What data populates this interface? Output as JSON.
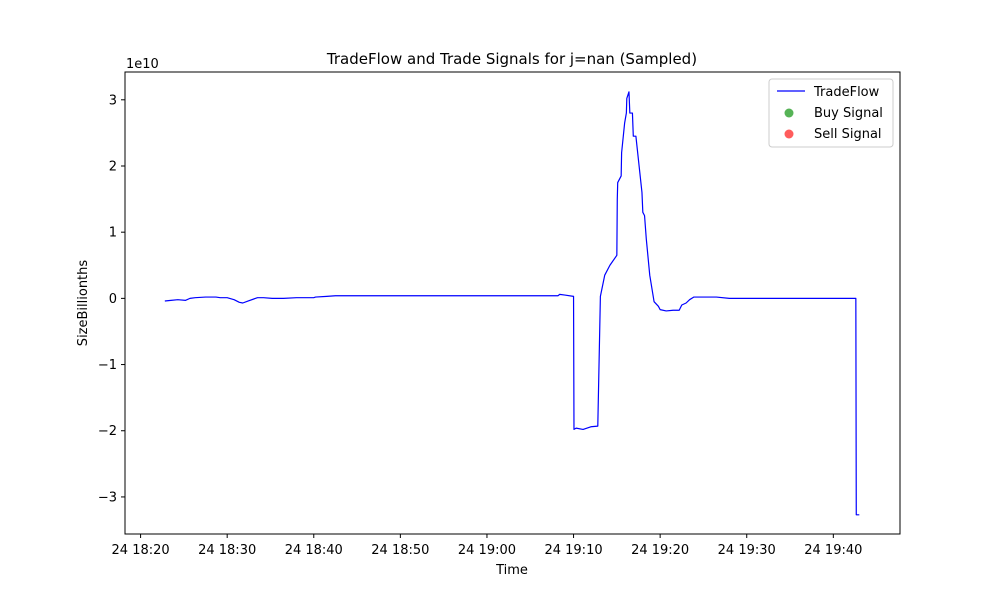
{
  "chart_data": {
    "type": "line",
    "title": "TradeFlow and Trade Signals for j=nan (Sampled)",
    "xlabel": "Time",
    "ylabel": "SizeBillionths",
    "y_offset_label": "1e10",
    "x_unit": "minutes since 24 18:20",
    "x_ticks": [
      {
        "value": 0,
        "label": "24 18:20"
      },
      {
        "value": 10,
        "label": "24 18:30"
      },
      {
        "value": 20,
        "label": "24 18:40"
      },
      {
        "value": 30,
        "label": "24 18:50"
      },
      {
        "value": 40,
        "label": "24 19:00"
      },
      {
        "value": 50,
        "label": "24 19:10"
      },
      {
        "value": 60,
        "label": "24 19:20"
      },
      {
        "value": 70,
        "label": "24 19:30"
      },
      {
        "value": 80,
        "label": "24 19:40"
      }
    ],
    "y_ticks": [
      {
        "value": -3,
        "label": "−3"
      },
      {
        "value": -2,
        "label": "−2"
      },
      {
        "value": -1,
        "label": "−1"
      },
      {
        "value": 0,
        "label": "0"
      },
      {
        "value": 1,
        "label": "1"
      },
      {
        "value": 2,
        "label": "2"
      },
      {
        "value": 3,
        "label": "3"
      }
    ],
    "xlim": [
      -1.8,
      87.7
    ],
    "ylim": [
      -3.56,
      3.42
    ],
    "legend": {
      "position": "top-right",
      "entries": [
        {
          "label": "TradeFlow",
          "kind": "line",
          "color": "#0000ff"
        },
        {
          "label": "Buy Signal",
          "kind": "marker",
          "color": "#2ca02c"
        },
        {
          "label": "Sell Signal",
          "kind": "marker",
          "color": "#ff3333"
        }
      ]
    },
    "series": [
      {
        "name": "TradeFlow",
        "color": "#0000ff",
        "points": [
          [
            2.8,
            -0.04
          ],
          [
            3.5,
            -0.03
          ],
          [
            4.3,
            -0.02
          ],
          [
            5.2,
            -0.03
          ],
          [
            5.7,
            0.0
          ],
          [
            6.3,
            0.01
          ],
          [
            7.5,
            0.02
          ],
          [
            8.7,
            0.02
          ],
          [
            9.2,
            0.01
          ],
          [
            10.0,
            0.01
          ],
          [
            10.8,
            -0.02
          ],
          [
            11.4,
            -0.06
          ],
          [
            11.8,
            -0.07
          ],
          [
            12.4,
            -0.04
          ],
          [
            13.5,
            0.01
          ],
          [
            14.2,
            0.01
          ],
          [
            15.2,
            0.0
          ],
          [
            16.5,
            0.0
          ],
          [
            18.0,
            0.01
          ],
          [
            19.3,
            0.01
          ],
          [
            20.0,
            0.01
          ],
          [
            20.2,
            0.02
          ],
          [
            21.5,
            0.03
          ],
          [
            22.5,
            0.04
          ],
          [
            23.3,
            0.04
          ],
          [
            30.0,
            0.04
          ],
          [
            40.0,
            0.04
          ],
          [
            48.2,
            0.04
          ],
          [
            48.4,
            0.06
          ],
          [
            49.0,
            0.05
          ],
          [
            50.0,
            0.03
          ],
          [
            50.05,
            -1.98
          ],
          [
            50.3,
            -1.96
          ],
          [
            51.1,
            -1.98
          ],
          [
            52.0,
            -1.94
          ],
          [
            52.8,
            -1.93
          ],
          [
            53.1,
            0.03
          ],
          [
            53.6,
            0.35
          ],
          [
            54.2,
            0.5
          ],
          [
            55.0,
            0.65
          ],
          [
            55.05,
            1.5
          ],
          [
            55.1,
            1.75
          ],
          [
            55.5,
            1.85
          ],
          [
            55.55,
            2.2
          ],
          [
            55.9,
            2.65
          ],
          [
            56.1,
            2.8
          ],
          [
            56.15,
            3.02
          ],
          [
            56.4,
            3.12
          ],
          [
            56.5,
            2.8
          ],
          [
            56.8,
            2.8
          ],
          [
            56.9,
            2.45
          ],
          [
            57.2,
            2.45
          ],
          [
            57.9,
            1.6
          ],
          [
            58.0,
            1.3
          ],
          [
            58.2,
            1.25
          ],
          [
            58.4,
            0.9
          ],
          [
            58.8,
            0.35
          ],
          [
            59.3,
            -0.05
          ],
          [
            59.8,
            -0.12
          ],
          [
            60.0,
            -0.17
          ],
          [
            60.7,
            -0.19
          ],
          [
            61.5,
            -0.18
          ],
          [
            62.2,
            -0.18
          ],
          [
            62.5,
            -0.1
          ],
          [
            63.0,
            -0.07
          ],
          [
            63.4,
            -0.02
          ],
          [
            63.9,
            0.02
          ],
          [
            65.0,
            0.02
          ],
          [
            66.5,
            0.02
          ],
          [
            68.0,
            0.0
          ],
          [
            70.0,
            0.0
          ],
          [
            80.0,
            0.0
          ],
          [
            82.6,
            0.0
          ],
          [
            82.65,
            -3.27
          ],
          [
            83.0,
            -3.27
          ]
        ]
      }
    ]
  }
}
